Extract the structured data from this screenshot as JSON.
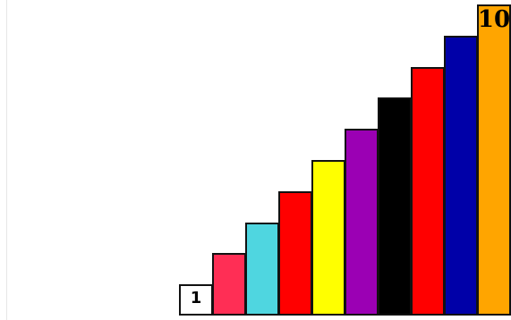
{
  "rods": [
    {
      "length": 1,
      "color": "#ffffff",
      "label": "1"
    },
    {
      "length": 2,
      "color": "#ff2e55",
      "label": ""
    },
    {
      "length": 3,
      "color": "#4fd6e0",
      "label": ""
    },
    {
      "length": 4,
      "color": "#ff0000",
      "label": ""
    },
    {
      "length": 5,
      "color": "#ffff00",
      "label": ""
    },
    {
      "length": 6,
      "color": "#9b00b4",
      "label": ""
    },
    {
      "length": 7,
      "color": "#000000",
      "label": ""
    },
    {
      "length": 8,
      "color": "#ff0000",
      "label": ""
    },
    {
      "length": 9,
      "color": "#0000a8",
      "label": ""
    },
    {
      "length": 10,
      "color": "#ffa500",
      "label": "10"
    }
  ]
}
